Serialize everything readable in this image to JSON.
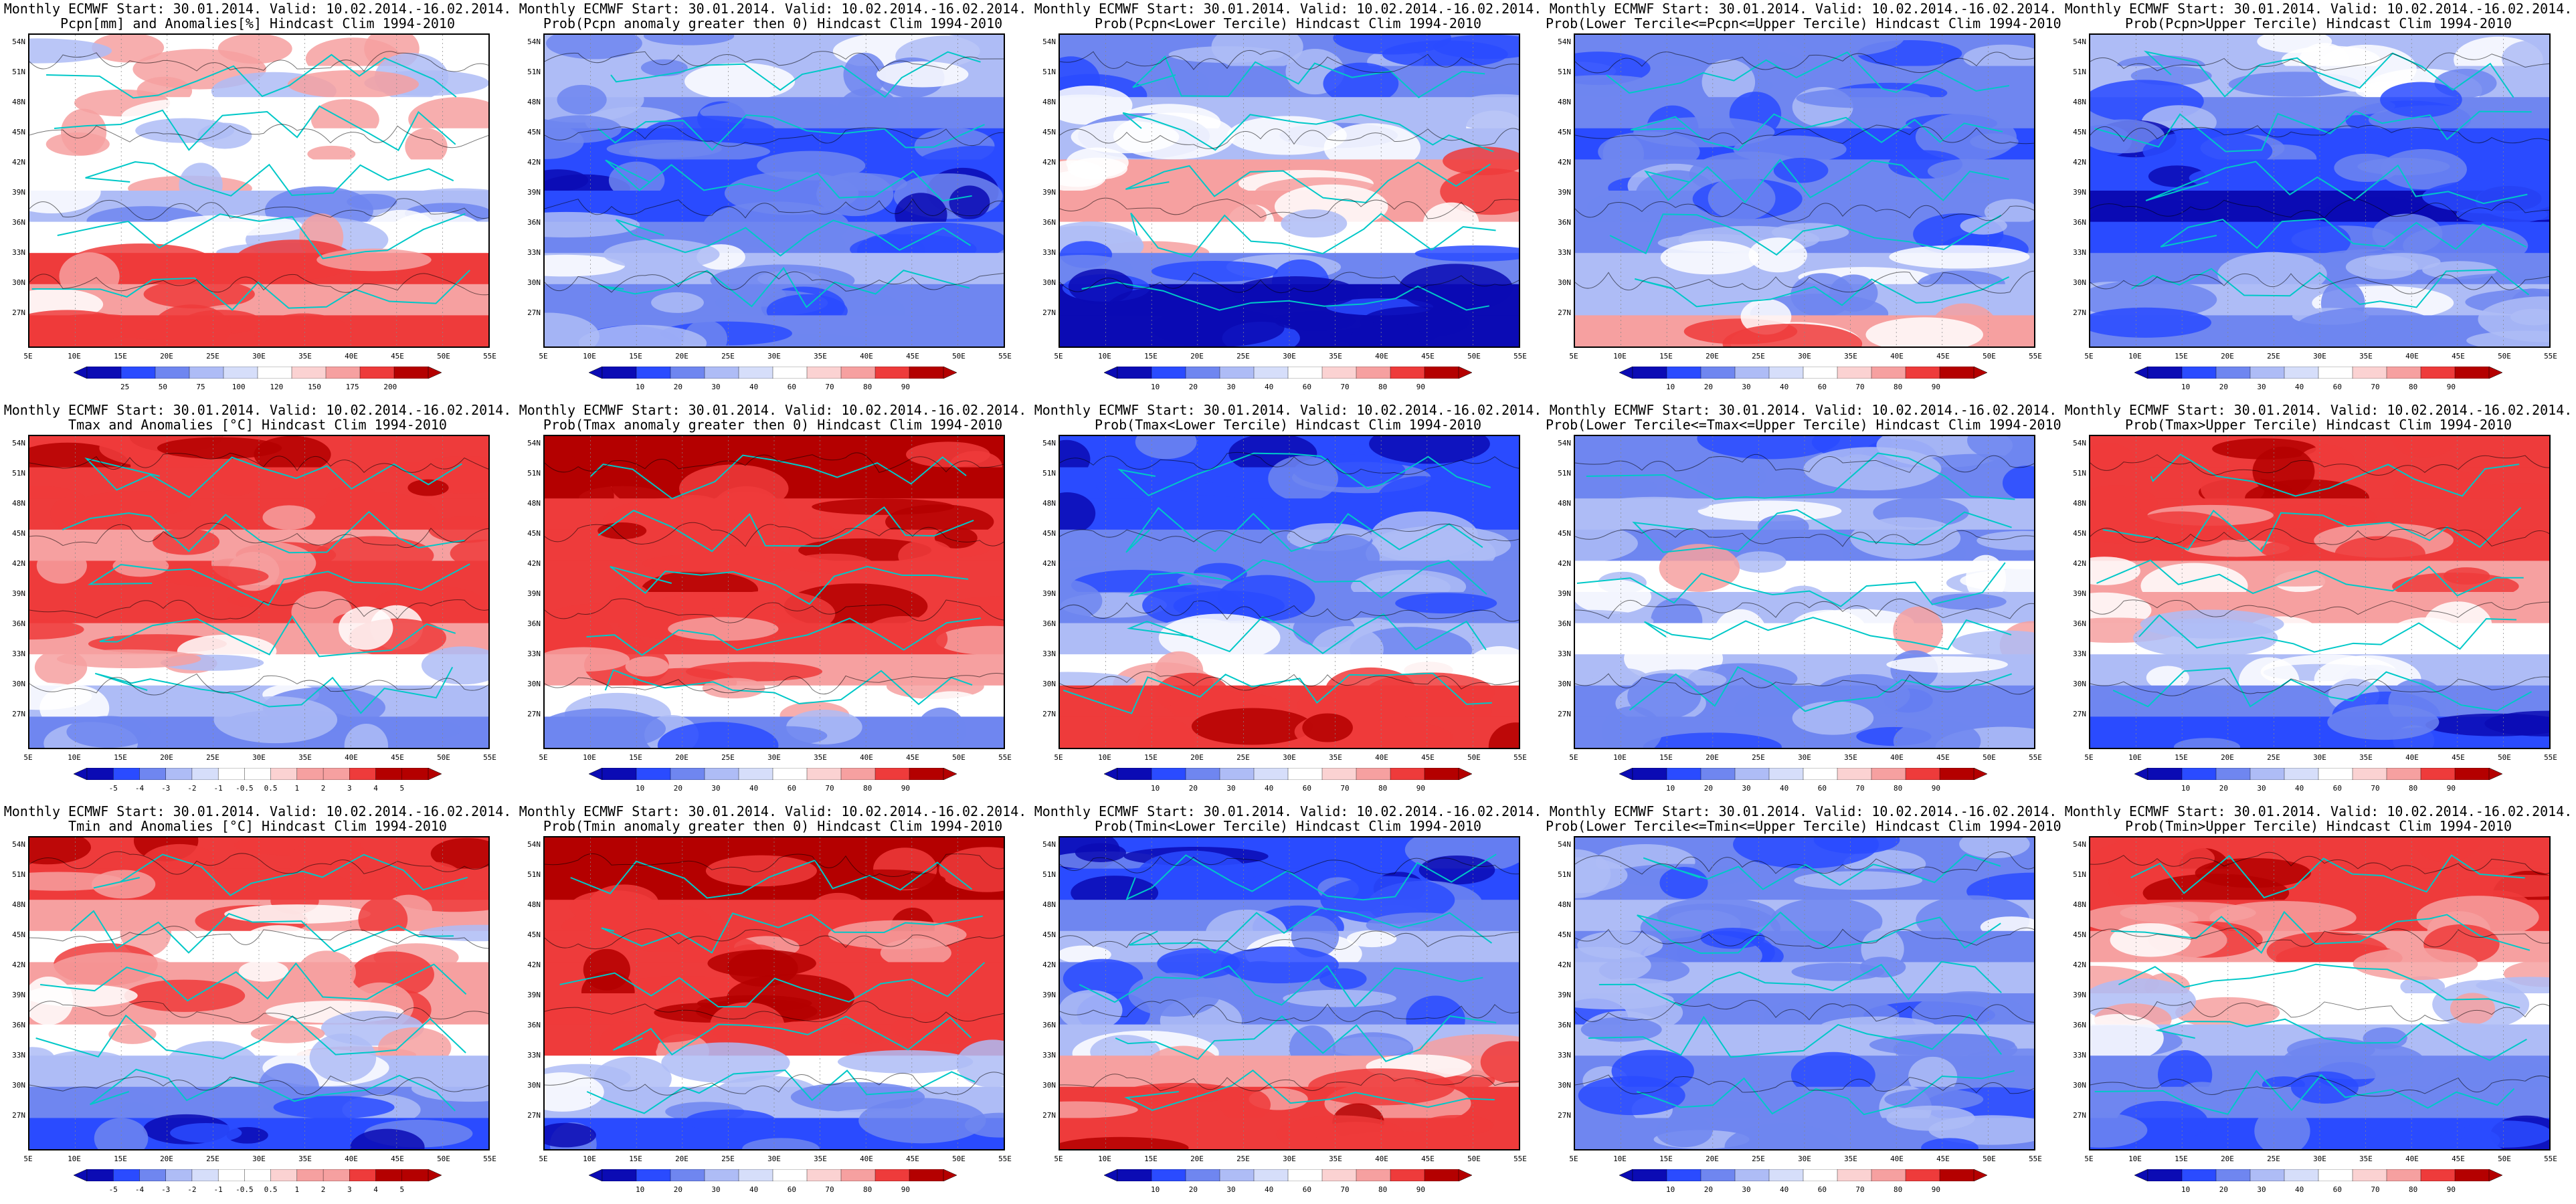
{
  "title_prefix": "Monthly ECMWF Start: 30.01.2014. Valid: 10.02.2014.-16.02.2014.",
  "axes": {
    "lat_labels": [
      "54N",
      "51N",
      "48N",
      "45N",
      "42N",
      "39N",
      "36N",
      "33N",
      "30N",
      "27N"
    ],
    "lon_labels": [
      "5E",
      "10E",
      "15E",
      "20E",
      "25E",
      "30E",
      "35E",
      "40E",
      "45E",
      "50E",
      "55E"
    ]
  },
  "colors": {
    "blue_dark": "#0b0bb4",
    "blue": "#2a4bff",
    "blue_mid": "#6f86f0",
    "blue_light": "#aebcf6",
    "blue_pale": "#d6defa",
    "white": "#ffffff",
    "red_pale": "#fbd2d2",
    "red_light": "#f6a0a0",
    "red": "#ee3b3b",
    "red_dark": "#b40000",
    "coast": "#00c8c8",
    "contour": "#000000"
  },
  "colorbars": {
    "pcpn": [
      "25",
      "50",
      "75",
      "100",
      "120",
      "150",
      "175",
      "200"
    ],
    "prob": [
      "10",
      "20",
      "30",
      "40",
      "60",
      "70",
      "80",
      "90"
    ],
    "anom": [
      "-5",
      "-4",
      "-3",
      "-2",
      "-1",
      "-0.5",
      "0.5",
      "1",
      "2",
      "3",
      "4",
      "5"
    ]
  },
  "panels": [
    {
      "title": "Pcpn[mm] and Anomalies[%] Hindcast Clim 1994-2010",
      "cb": "pcpn",
      "pattern": [
        0,
        0,
        0,
        0,
        0,
        -1,
        0,
        2,
        1,
        2
      ]
    },
    {
      "title": "Prob(Pcpn anomaly greater then 0) Hindcast Clim 1994-2010",
      "cb": "prob",
      "pattern": [
        -1,
        -1,
        -2,
        -3,
        -3,
        -3,
        -2,
        -1,
        -2,
        -2
      ]
    },
    {
      "title": "Prob(Pcpn<Lower Tercile) Hindcast Clim 1994-2010",
      "cb": "prob",
      "pattern": [
        -2,
        -2,
        -1,
        -1,
        1,
        1,
        0,
        -2,
        -4,
        -4
      ]
    },
    {
      "title": "Prob(Lower Tercile<=Pcpn<=Upper Tercile) Hindcast Clim 1994-2010",
      "cb": "prob",
      "pattern": [
        -2,
        -2,
        -2,
        -3,
        -2,
        -2,
        -2,
        -1,
        -1,
        1
      ]
    },
    {
      "title": "Prob(Pcpn>Upper Tercile) Hindcast Clim 1994-2010",
      "cb": "prob",
      "pattern": [
        -1,
        -1,
        -2,
        -3,
        -3,
        -4,
        -3,
        -2,
        -1,
        -2
      ]
    },
    {
      "title": "Tmax and Anomalies [°C] Hindcast Clim 1994-2010",
      "cb": "anom",
      "pattern": [
        3,
        3,
        2,
        1,
        2,
        2,
        1,
        0,
        -1,
        -2
      ]
    },
    {
      "title": "Prob(Tmax anomaly greater then 0) Hindcast Clim 1994-2010",
      "cb": "prob",
      "pattern": [
        4,
        4,
        3,
        3,
        3,
        3,
        2,
        1,
        0,
        -2
      ]
    },
    {
      "title": "Prob(Tmax<Lower Tercile) Hindcast Clim 1994-2010",
      "cb": "prob",
      "pattern": [
        -3,
        -3,
        -3,
        -2,
        -2,
        -2,
        -1,
        0,
        2,
        3
      ]
    },
    {
      "title": "Prob(Lower Tercile<=Tmax<=Upper Tercile) Hindcast Clim 1994-2010",
      "cb": "prob",
      "pattern": [
        -2,
        -2,
        -1,
        -2,
        0,
        -1,
        0,
        -1,
        -2,
        -2
      ]
    },
    {
      "title": "Prob(Tmax>Upper Tercile) Hindcast Clim 1994-2010",
      "cb": "prob",
      "pattern": [
        3,
        3,
        2,
        2,
        1,
        1,
        0,
        -1,
        -2,
        -3
      ]
    },
    {
      "title": "Tmin and Anomalies [°C] Hindcast Clim 1994-2010",
      "cb": "anom",
      "pattern": [
        3,
        2,
        1,
        0,
        1,
        1,
        0,
        -1,
        -2,
        -3
      ]
    },
    {
      "title": "Prob(Tmin anomaly greater then 0) Hindcast Clim 1994-2010",
      "cb": "prob",
      "pattern": [
        4,
        4,
        3,
        2,
        3,
        3,
        2,
        0,
        -1,
        -3
      ]
    },
    {
      "title": "Prob(Tmin<Lower Tercile) Hindcast Clim 1994-2010",
      "cb": "prob",
      "pattern": [
        -3,
        -3,
        -2,
        -1,
        -2,
        -2,
        -1,
        1,
        2,
        3
      ]
    },
    {
      "title": "Prob(Lower Tercile<=Tmin<=Upper Tercile) Hindcast Clim 1994-2010",
      "cb": "prob",
      "pattern": [
        -2,
        -2,
        -1,
        -2,
        -1,
        -2,
        -1,
        -2,
        -2,
        -2
      ]
    },
    {
      "title": "Prob(Tmin>Upper Tercile) Hindcast Clim 1994-2010",
      "cb": "prob",
      "pattern": [
        3,
        3,
        2,
        1,
        0,
        0,
        -1,
        -2,
        -2,
        -3
      ]
    }
  ]
}
